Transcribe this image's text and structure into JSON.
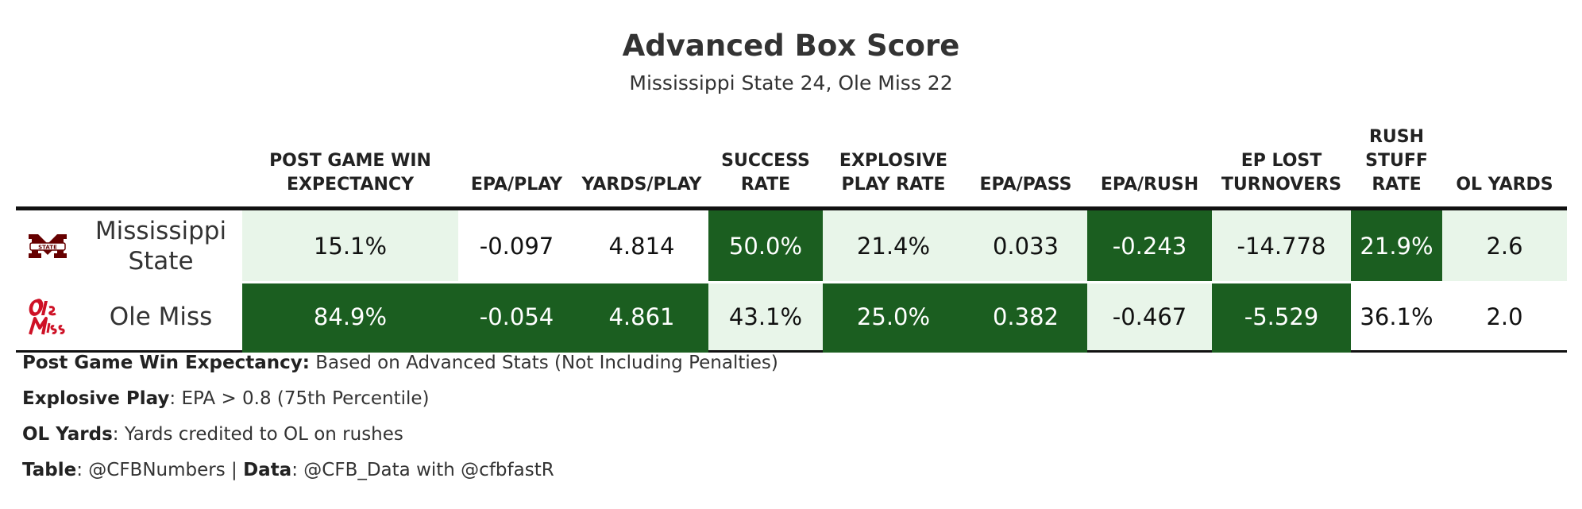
{
  "title": "Advanced Box Score",
  "subtitle": "Mississippi State 24, Ole Miss 22",
  "chart_data": {
    "type": "table",
    "columns": [
      {
        "key": "team",
        "label": ""
      },
      {
        "key": "wp",
        "label": "POST GAME WIN EXPECTANCY"
      },
      {
        "key": "epa_play",
        "label": "EPA/PLAY"
      },
      {
        "key": "yds_play",
        "label": "YARDS/PLAY"
      },
      {
        "key": "success",
        "label": "SUCCESS RATE"
      },
      {
        "key": "explosive",
        "label": "EXPLOSIVE PLAY RATE"
      },
      {
        "key": "epa_pass",
        "label": "EPA/PASS"
      },
      {
        "key": "epa_rush",
        "label": "EPA/RUSH"
      },
      {
        "key": "ep_lost",
        "label": "EP LOST TURNOVERS"
      },
      {
        "key": "stuff",
        "label": "RUSH STUFF RATE"
      },
      {
        "key": "ol",
        "label": "OL YARDS"
      }
    ],
    "rows": [
      {
        "team": "Mississippi State",
        "logo_icon": "mississippi-state-logo-icon",
        "values": [
          "15.1%",
          "-0.097",
          "4.814",
          "50.0%",
          "21.4%",
          "0.033",
          "-0.243",
          "-14.778",
          "21.9%",
          "2.6"
        ],
        "shading": [
          "light",
          "plain",
          "plain",
          "dark",
          "light",
          "light",
          "dark",
          "light",
          "dark",
          "light"
        ]
      },
      {
        "team": "Ole Miss",
        "logo_icon": "ole-miss-logo-icon",
        "values": [
          "84.9%",
          "-0.054",
          "4.861",
          "43.1%",
          "25.0%",
          "0.382",
          "-0.467",
          "-5.529",
          "36.1%",
          "2.0"
        ],
        "shading": [
          "dark",
          "dark",
          "dark",
          "light",
          "dark",
          "dark",
          "light",
          "dark",
          "plain",
          "plain"
        ]
      }
    ]
  },
  "colors": {
    "dark": "#1b5e20",
    "light": "#e8f5e9",
    "msu_maroon": "#660000",
    "ole_miss_red": "#ce1126"
  },
  "notes": [
    {
      "bold": "Post Game Win Expectancy:",
      "text": " Based on Advanced Stats (Not Including Penalties)"
    },
    {
      "bold": "Explosive Play",
      "text": ": EPA > 0.8 (75th Percentile)"
    },
    {
      "bold": "OL Yards",
      "text": ": Yards credited to OL on rushes"
    }
  ],
  "credit": {
    "table_label": "Table",
    "table_value": ": @CFBNumbers | ",
    "data_label": "Data",
    "data_value": ": @CFB_Data with @cfbfastR"
  }
}
